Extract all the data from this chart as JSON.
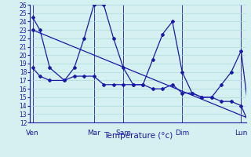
{
  "xlabel": "Température (°c)",
  "background_color": "#d4f0f0",
  "grid_color": "#b0d8d8",
  "line_color": "#1a1aaa",
  "ylim": [
    12,
    26
  ],
  "xlim": [
    0,
    44
  ],
  "day_labels": [
    "Ven",
    "Mar",
    "Sam",
    "Dim",
    "Lun"
  ],
  "day_positions": [
    0.5,
    13,
    19,
    31,
    43
  ],
  "vline_positions": [
    0.5,
    13,
    19,
    31,
    43
  ],
  "series1_x": [
    0.5,
    2,
    4,
    7,
    9,
    11,
    13,
    15,
    17,
    19,
    21,
    23,
    25,
    27,
    29,
    31,
    33,
    35,
    37,
    39,
    41,
    43,
    44.5
  ],
  "series1_y": [
    24.5,
    23.0,
    18.5,
    17.0,
    18.5,
    22.0,
    26.0,
    26.0,
    22.0,
    18.5,
    16.5,
    16.5,
    19.5,
    22.5,
    24.0,
    18.0,
    15.5,
    15.0,
    15.0,
    16.5,
    18.0,
    20.5,
    13.5
  ],
  "series2_x": [
    0.5,
    44.5
  ],
  "series2_y": [
    23.0,
    12.5
  ],
  "series3_x": [
    0.5,
    2,
    4,
    7,
    9,
    11,
    13,
    15,
    17,
    19,
    21,
    23,
    25,
    27,
    29,
    31,
    33,
    35,
    37,
    39,
    41,
    43,
    44.5
  ],
  "series3_y": [
    18.5,
    17.5,
    17.0,
    17.0,
    17.5,
    17.5,
    17.5,
    16.5,
    16.5,
    16.5,
    16.5,
    16.5,
    16.0,
    16.0,
    16.5,
    15.5,
    15.5,
    15.0,
    15.0,
    14.5,
    14.5,
    14.0,
    12.0
  ]
}
